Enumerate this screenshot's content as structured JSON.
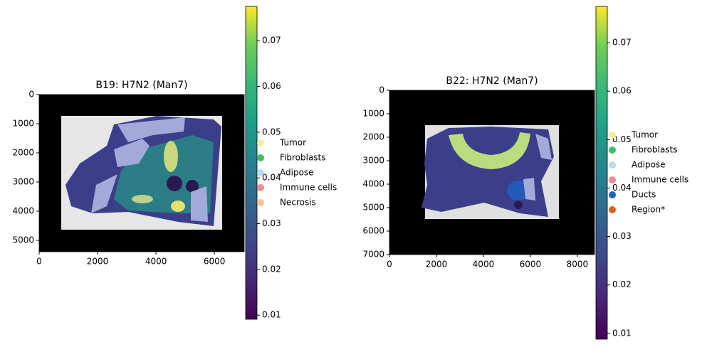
{
  "chart_data": [
    {
      "type": "image",
      "title": "B19: H7N2 (Man7)",
      "xlim": [
        0,
        7020
      ],
      "xticks": [
        0,
        2000,
        4000,
        6000
      ],
      "ylim": [
        5390,
        0
      ],
      "yticks": [
        0,
        1000,
        2000,
        3000,
        4000,
        5000
      ],
      "colorbar": {
        "lim": [
          0.0091,
          0.0775
        ],
        "ticks": [
          0.01,
          0.02,
          0.03,
          0.04,
          0.05,
          0.06,
          0.07
        ]
      },
      "legend": [
        {
          "name": "Tumor",
          "color": "#f5ee9a"
        },
        {
          "name": "Fibroblasts",
          "color": "#3cc060"
        },
        {
          "name": "Adipose",
          "color": "#b8dcf5"
        },
        {
          "name": "Immune cells",
          "color": "#ee8e8e"
        },
        {
          "name": "Necrosis",
          "color": "#f5c290"
        }
      ]
    },
    {
      "type": "image",
      "title": "B22: H7N2 (Man7)",
      "xlim": [
        0,
        8730
      ],
      "xticks": [
        0,
        2000,
        4000,
        6000,
        8000
      ],
      "ylim": [
        7000,
        0
      ],
      "yticks": [
        0,
        1000,
        2000,
        3000,
        4000,
        5000,
        6000,
        7000
      ],
      "colorbar": {
        "lim": [
          0.0088,
          0.0775
        ],
        "ticks": [
          0.01,
          0.02,
          0.03,
          0.04,
          0.05,
          0.06,
          0.07
        ]
      },
      "legend": [
        {
          "name": "Tumor",
          "color": "#f5ee9a"
        },
        {
          "name": "Fibroblasts",
          "color": "#3cc060"
        },
        {
          "name": "Adipose",
          "color": "#b8dcf5"
        },
        {
          "name": "Immune cells",
          "color": "#ee8e8e"
        },
        {
          "name": "Ducts",
          "color": "#1f62c8"
        },
        {
          "name": "Region*",
          "color": "#e0601a"
        }
      ]
    }
  ]
}
